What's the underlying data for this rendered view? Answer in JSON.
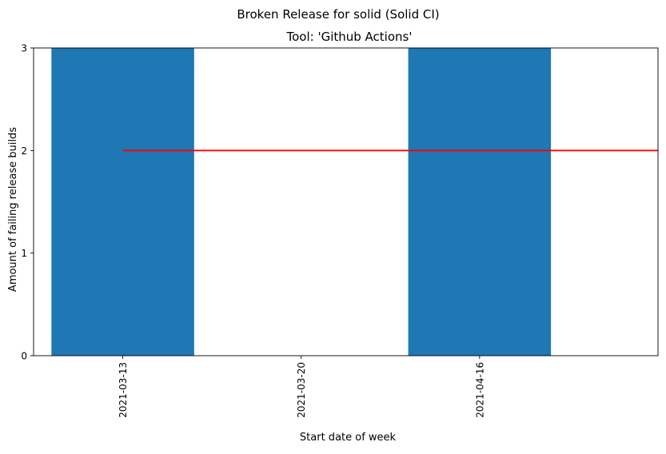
{
  "chart_data": {
    "type": "bar",
    "suptitle": "Broken Release for solid (Solid CI)",
    "title": "Tool: 'Github Actions'",
    "xlabel": "Start date of week",
    "ylabel": "Amount of failing release builds",
    "categories": [
      "2021-03-13",
      "2021-03-20",
      "2021-04-16"
    ],
    "values": [
      3,
      0,
      3
    ],
    "ylim": [
      0,
      3.0
    ],
    "yticks": [
      0,
      1,
      2,
      3
    ],
    "xlim": [
      -0.5,
      3.0
    ],
    "reference_line": {
      "value": 2,
      "x_start": 0,
      "x_end": 3,
      "color": "#ff0000"
    },
    "bar_color": "#1f77b4",
    "grid": false,
    "legend": "none"
  }
}
